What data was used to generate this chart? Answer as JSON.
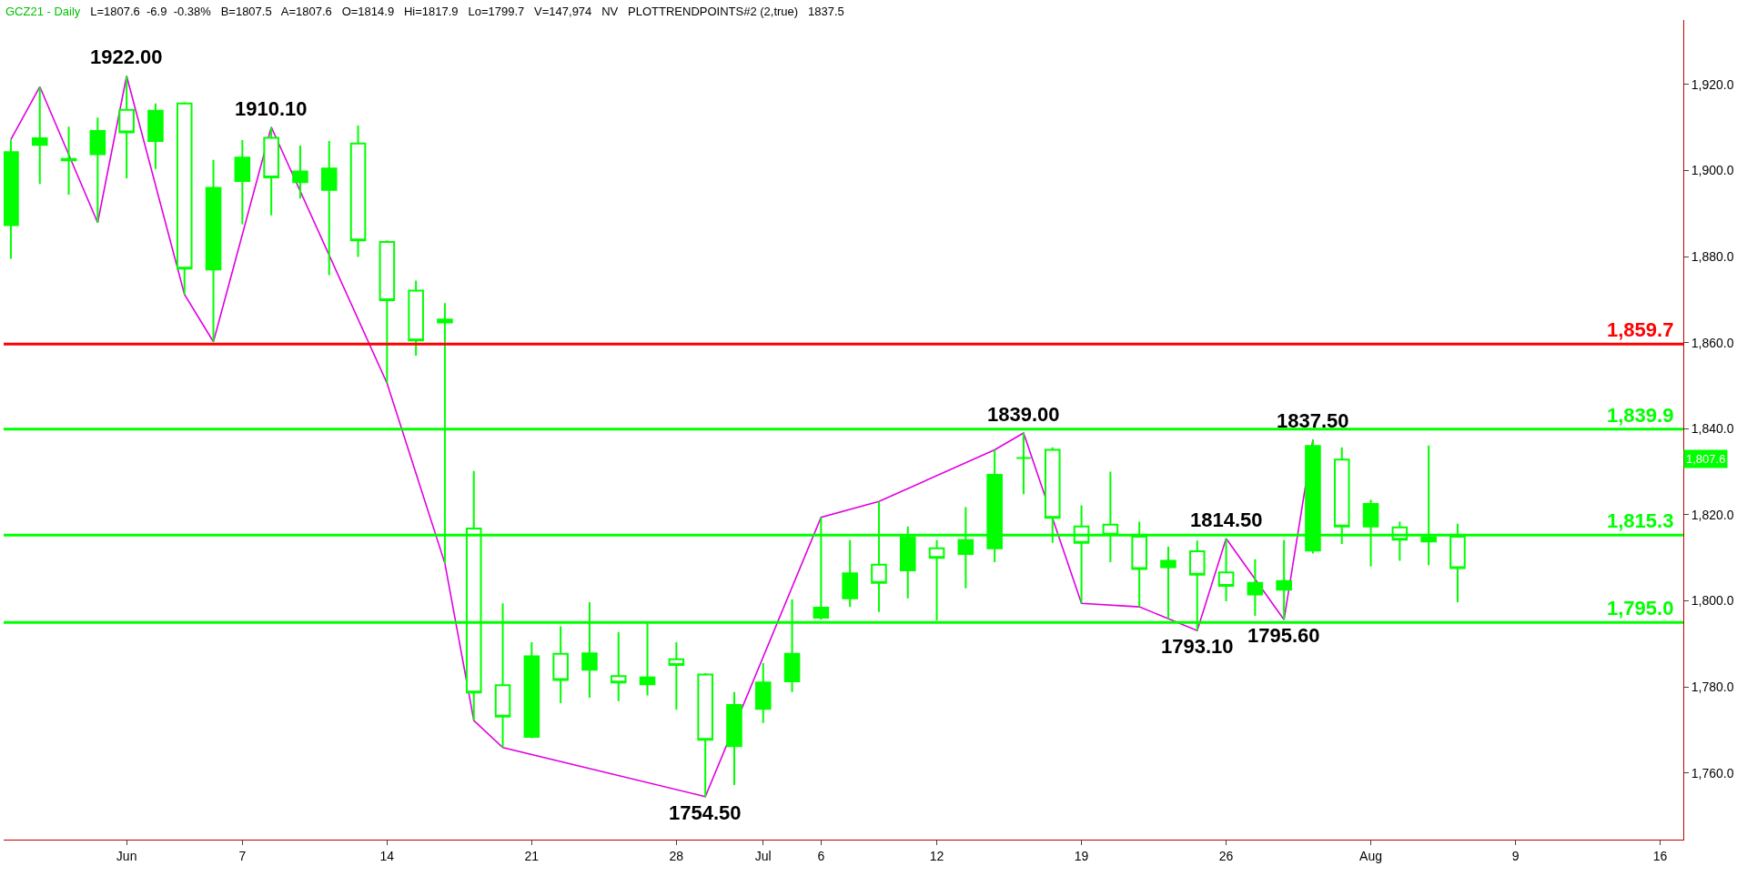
{
  "chart_data": {
    "type": "candlestick",
    "title": "GCZ21 - Daily",
    "subtitle": "L=1807.6  -6.9  -0.38%   B=1807.5   A=1807.6   O=1814.9   Hi=1817.9   Lo=1799.7   V=147,974   NV   PLOTTRENDPOINTS#2 (2,true)   1837.5",
    "color": "#00ff00",
    "categories": [
      null,
      null,
      null,
      null,
      "Jun",
      null,
      null,
      null,
      "7",
      null,
      null,
      null,
      null,
      "14",
      null,
      null,
      null,
      null,
      "21",
      null,
      null,
      null,
      null,
      "28",
      null,
      null,
      "Jul",
      null,
      "6",
      null,
      null,
      null,
      "12",
      null,
      null,
      null,
      null,
      "19",
      null,
      null,
      null,
      null,
      "26",
      null,
      null,
      null,
      null,
      "Aug",
      null,
      null,
      null,
      null,
      "9",
      null,
      null,
      null,
      null,
      "16"
    ],
    "ohlc": [
      [
        1887.3,
        1907.2,
        1879.5,
        1904.3
      ],
      [
        1906.0,
        1919.5,
        1896.9,
        1907.5
      ],
      [
        1902.7,
        1910.2,
        1894.4,
        1902.4
      ],
      [
        1903.8,
        1912.3,
        1887.9,
        1909.2
      ],
      [
        1914.1,
        1922.0,
        1898.2,
        1908.9
      ],
      [
        1906.9,
        1915.6,
        1900.4,
        1913.9
      ],
      [
        1915.6,
        1915.9,
        1871.2,
        1877.2
      ],
      [
        1877.0,
        1902.5,
        1860.2,
        1896.0
      ],
      [
        1897.6,
        1907.1,
        1887.5,
        1903.0
      ],
      [
        1907.6,
        1910.1,
        1889.6,
        1898.4
      ],
      [
        1897.3,
        1905.8,
        1893.5,
        1899.8
      ],
      [
        1895.5,
        1906.9,
        1875.7,
        1900.5
      ],
      [
        1906.3,
        1910.5,
        1879.9,
        1883.8
      ],
      [
        1883.4,
        1883.8,
        1850.6,
        1869.9
      ],
      [
        1872.1,
        1874.4,
        1857.0,
        1860.5
      ],
      [
        1864.7,
        1869.2,
        1808.7,
        1865.4
      ],
      [
        1816.8,
        1830.2,
        1772.2,
        1778.7
      ],
      [
        1780.4,
        1799.4,
        1765.9,
        1773.1
      ],
      [
        1768.4,
        1790.4,
        1768.1,
        1787.1
      ],
      [
        1787.7,
        1794.1,
        1776.2,
        1781.6
      ],
      [
        1784.0,
        1799.7,
        1777.5,
        1787.8
      ],
      [
        1782.5,
        1792.7,
        1776.7,
        1781.0
      ],
      [
        1780.6,
        1795.0,
        1778.0,
        1782.2
      ],
      [
        1786.4,
        1790.4,
        1774.7,
        1785.1
      ],
      [
        1782.9,
        1783.2,
        1754.5,
        1767.7
      ],
      [
        1766.2,
        1778.8,
        1757.2,
        1775.8
      ],
      [
        1774.9,
        1785.5,
        1771.6,
        1781.0
      ],
      [
        1781.3,
        1800.3,
        1778.8,
        1787.7
      ],
      [
        1796.1,
        1819.4,
        1795.6,
        1798.4
      ],
      [
        1800.6,
        1814.1,
        1798.6,
        1806.4
      ],
      [
        1808.4,
        1823.1,
        1797.4,
        1804.2
      ],
      [
        1807.1,
        1817.3,
        1800.6,
        1814.8
      ],
      [
        1812.2,
        1814.1,
        1795.4,
        1810.0
      ],
      [
        1810.9,
        1821.8,
        1802.9,
        1814.1
      ],
      [
        1812.2,
        1835.1,
        1809.0,
        1829.3
      ],
      [
        1833.2,
        1839.0,
        1824.8,
        1833.2
      ],
      [
        1835.1,
        1835.7,
        1813.5,
        1819.3
      ],
      [
        1817.3,
        1822.2,
        1799.4,
        1813.5
      ],
      [
        1817.7,
        1830.0,
        1809.0,
        1815.4
      ],
      [
        1814.9,
        1818.4,
        1798.6,
        1807.4
      ],
      [
        1807.8,
        1812.6,
        1795.8,
        1809.3
      ],
      [
        1811.5,
        1814.0,
        1793.1,
        1806.1
      ],
      [
        1806.6,
        1814.5,
        1799.9,
        1803.5
      ],
      [
        1801.5,
        1809.7,
        1796.5,
        1804.2
      ],
      [
        1802.6,
        1814.1,
        1795.6,
        1804.6
      ],
      [
        1811.7,
        1837.5,
        1811.0,
        1836.0
      ],
      [
        1832.8,
        1835.7,
        1813.2,
        1817.3
      ],
      [
        1817.3,
        1823.5,
        1808.0,
        1822.5
      ],
      [
        1817.1,
        1818.4,
        1809.3,
        1814.2
      ],
      [
        1813.8,
        1836.1,
        1808.3,
        1814.8
      ],
      [
        1814.9,
        1817.9,
        1799.7,
        1807.6
      ],
      null,
      null,
      null,
      null,
      null,
      null,
      null
    ],
    "series": [
      {
        "type": "line",
        "color": "#e000e0",
        "values": [
          1907.2,
          1919.5,
          null,
          1887.9,
          1922.0,
          null,
          1871.2,
          1860.2,
          null,
          1910.1,
          null,
          null,
          null,
          1850.6,
          null,
          1808.7,
          1772.2,
          1765.9,
          null,
          null,
          null,
          null,
          null,
          null,
          1754.5,
          null,
          null,
          null,
          1819.4,
          null,
          1823.1,
          null,
          null,
          null,
          1835.1,
          1839.0,
          null,
          1799.4,
          null,
          1798.6,
          null,
          1793.1,
          1814.5,
          null,
          1795.6,
          1837.5,
          null,
          null,
          null,
          null,
          null,
          null,
          null,
          null,
          null,
          null,
          null,
          null
        ]
      }
    ],
    "annotations": [
      {
        "text": "1922.00",
        "y": 1922.0
      },
      {
        "text": "1910.10",
        "y": 1910.1
      },
      {
        "text": "1754.50",
        "y": 1754.5
      },
      {
        "text": "1839.00",
        "y": 1839.0
      },
      {
        "text": "1793.10",
        "y": 1793.1
      },
      {
        "text": "1814.50",
        "y": 1814.5
      },
      {
        "text": "1795.60",
        "y": 1795.6
      },
      {
        "text": "1837.50",
        "y": 1837.5
      },
      "1,807.6"
    ],
    "ref_lines": [
      {
        "axis": "y",
        "value": 1859.7,
        "label": "1,859.7",
        "color": "#ff0000"
      },
      {
        "axis": "y",
        "value": 1839.9,
        "label": "1,839.9",
        "color": "#00ff00"
      },
      {
        "axis": "y",
        "value": 1815.3,
        "label": "1,815.3",
        "color": "#00ff00"
      },
      {
        "axis": "y",
        "value": 1795.0,
        "label": "1,795.0",
        "color": "#00ff00"
      }
    ],
    "ylim": [
      1744.5,
      1935
    ],
    "yticks": [
      {
        "value": 1760,
        "label": "1,760.0"
      },
      {
        "value": 1780,
        "label": "1,780.0"
      },
      {
        "value": 1800,
        "label": "1,800.0"
      },
      {
        "value": 1820,
        "label": "1,820.0"
      },
      {
        "value": 1840,
        "label": "1,840.0"
      },
      {
        "value": 1860,
        "label": "1,860.0"
      },
      {
        "value": 1880,
        "label": "1,880.0"
      },
      {
        "value": 1900,
        "label": "1,900.0"
      },
      {
        "value": 1920,
        "label": "1,920.0"
      }
    ]
  }
}
